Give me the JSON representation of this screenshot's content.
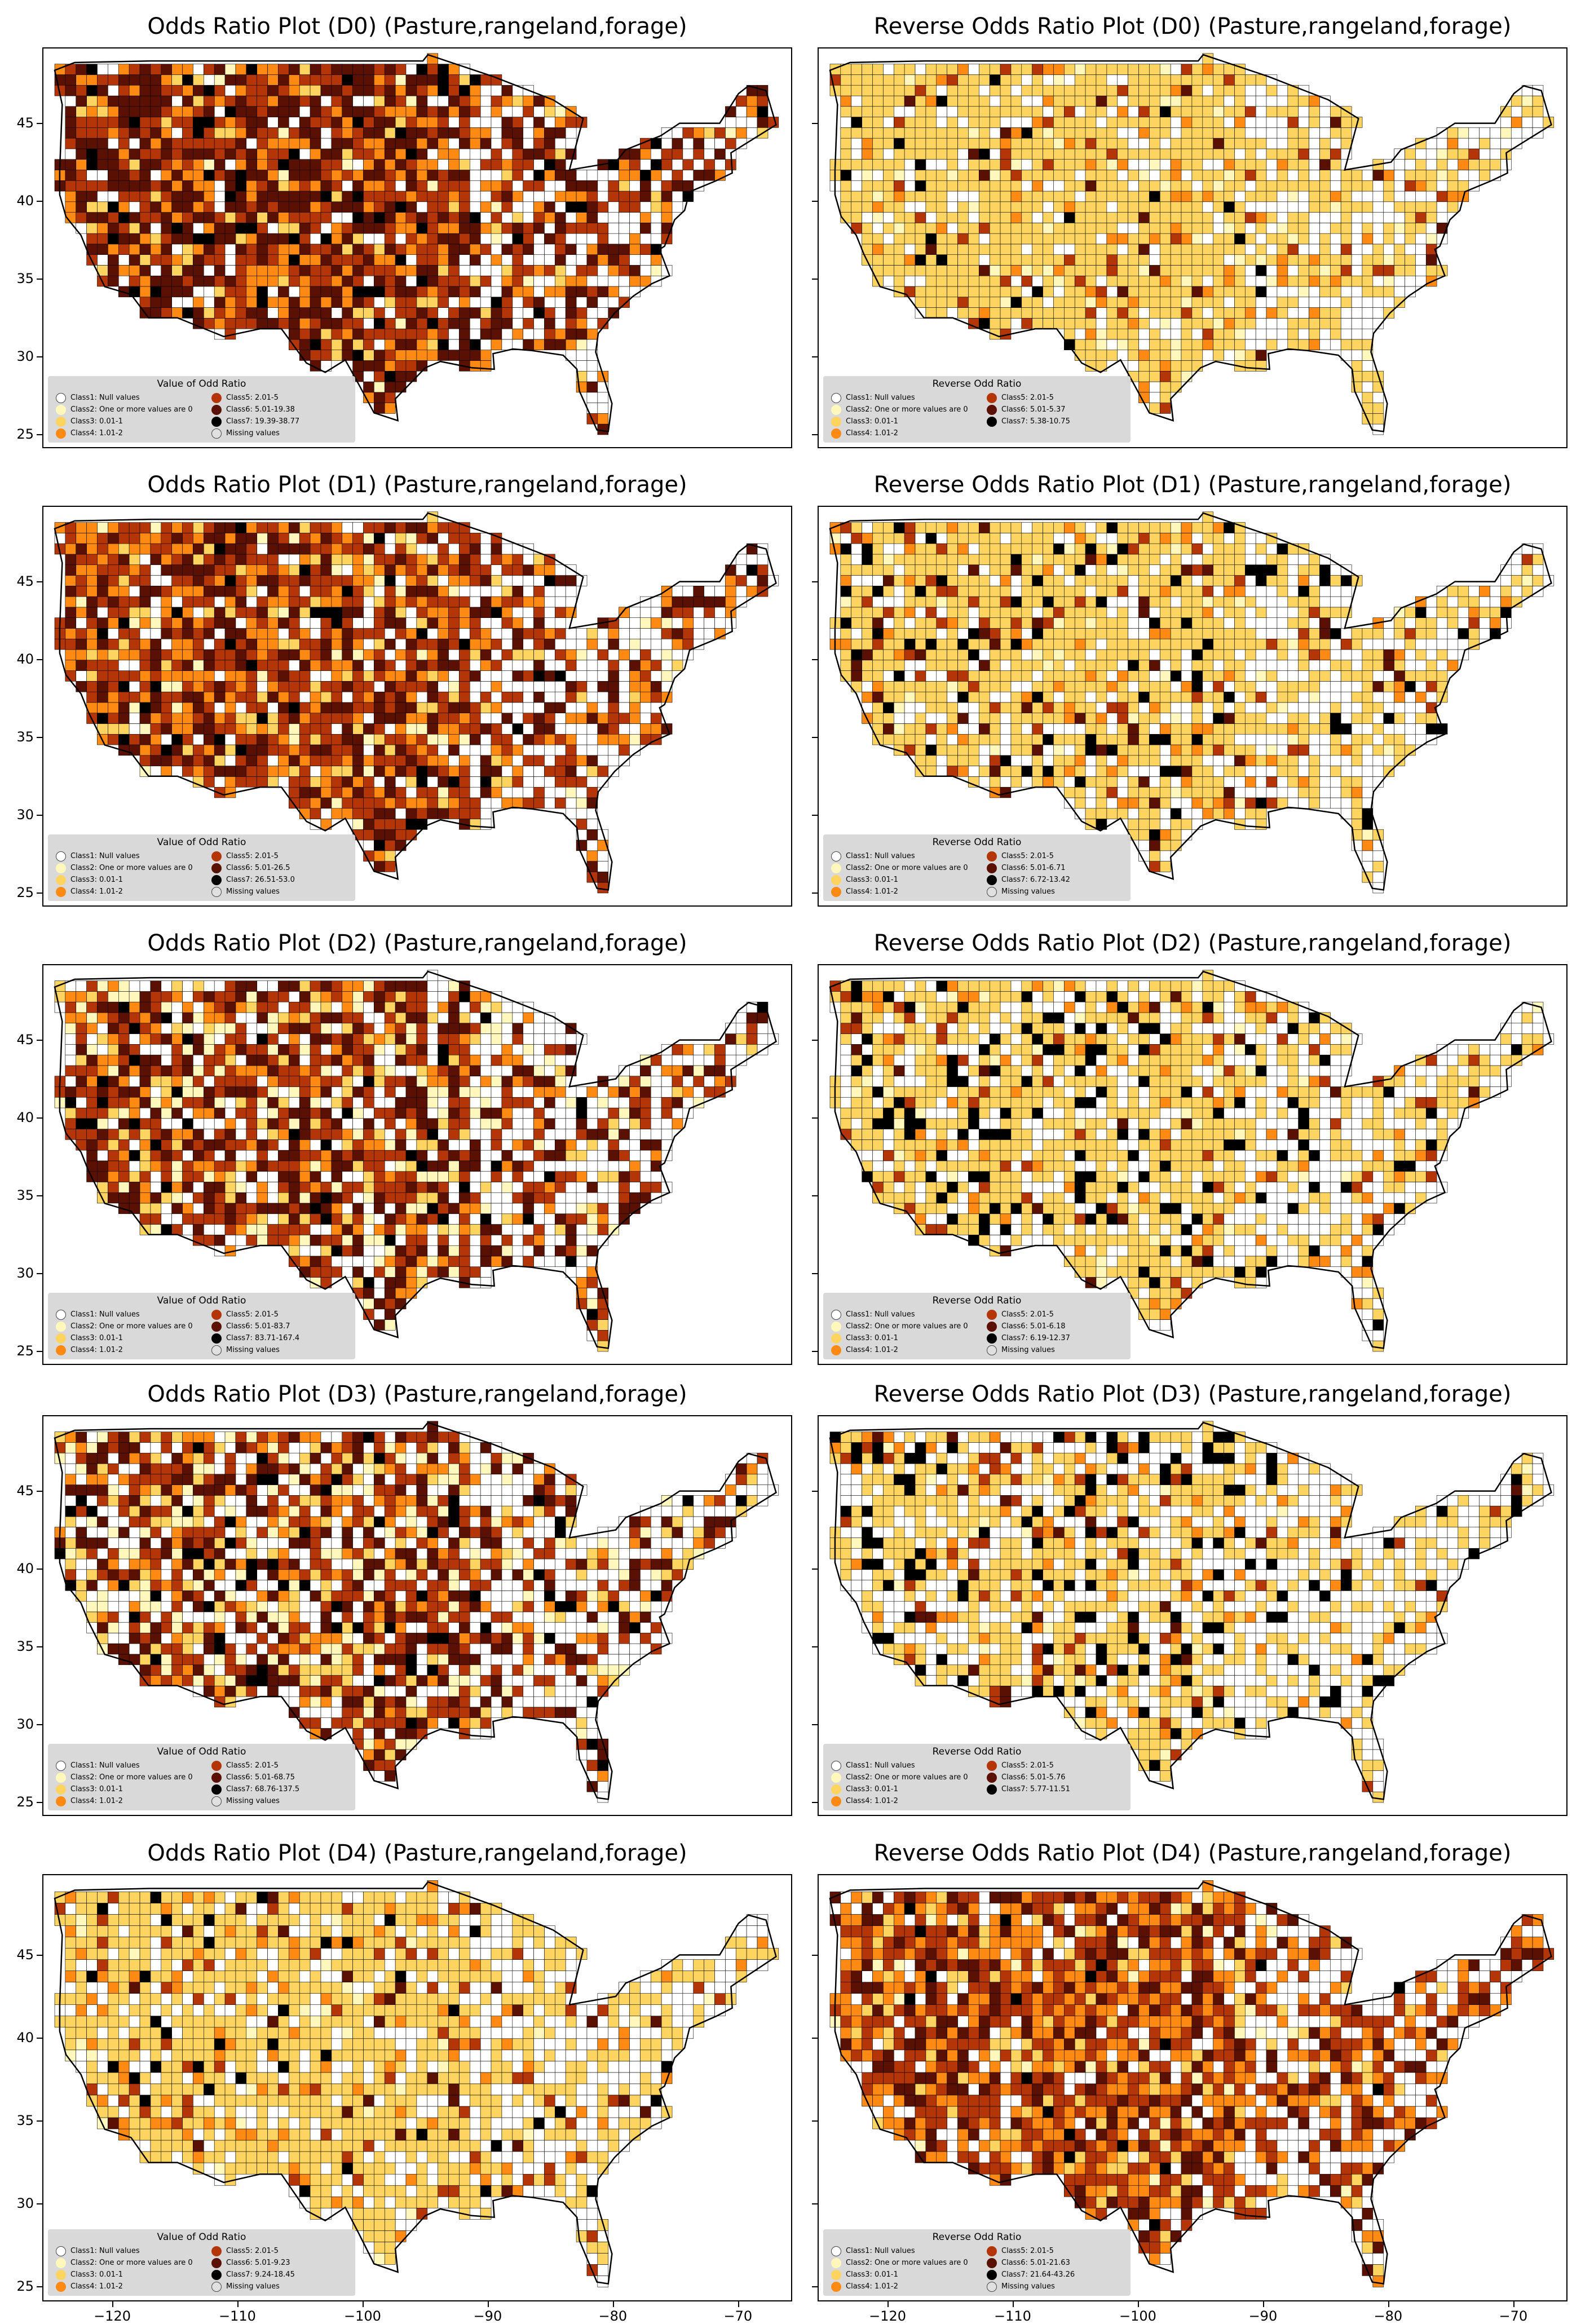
{
  "colors": {
    "class1": "#ffffff",
    "class2": "#fff7bc",
    "class3": "#fed460",
    "class4": "#fe8a14",
    "class5": "#b43507",
    "class6": "#5a1103",
    "class7": "#000000",
    "missing": "#e0e0e0"
  },
  "axes": {
    "yticks": [
      "45",
      "40",
      "35",
      "30",
      "25"
    ],
    "xticks": [
      "−120",
      "−110",
      "−100",
      "−90",
      "−80",
      "−70"
    ]
  },
  "panels": [
    {
      "title": "Odds Ratio Plot (D0) (Pasture,rangeland,forage)",
      "legend_title": "Value of Odd Ratio",
      "items": [
        "Class1: Null values",
        "Class2: One or more values are 0",
        "Class3: 0.01-1",
        "Class4: 1.01-2",
        "Class5: 2.01-5",
        "Class6: 5.01-19.38",
        "Class7: 19.39-38.77",
        "Missing values"
      ],
      "weights": [
        1.2,
        0.2,
        0.8,
        2.5,
        4,
        5,
        0.8
      ]
    },
    {
      "title": "Reverse Odds Ratio Plot (D0) (Pasture,rangeland,forage)",
      "legend_title": "Reverse Odd Ratio",
      "items": [
        "Class1: Null values",
        "Class2: One or more values are 0",
        "Class3: 0.01-1",
        "Class4: 1.01-2",
        "Class5: 2.01-5",
        "Class6: 5.01-5.37",
        "Class7: 5.38-10.75"
      ],
      "weights": [
        2,
        0.6,
        8,
        0.8,
        0.4,
        0.2,
        0.3
      ]
    },
    {
      "title": "Odds Ratio Plot (D1) (Pasture,rangeland,forage)",
      "legend_title": "Value of Odd Ratio",
      "items": [
        "Class1: Null values",
        "Class2: One or more values are 0",
        "Class3: 0.01-1",
        "Class4: 1.01-2",
        "Class5: 2.01-5",
        "Class6: 5.01-26.5",
        "Class7: 26.51-53.0",
        "Missing values"
      ],
      "weights": [
        1.5,
        0.6,
        1,
        3,
        4.5,
        3,
        0.4
      ]
    },
    {
      "title": "Reverse Odds Ratio Plot (D1) (Pasture,rangeland,forage)",
      "legend_title": "Reverse Odd Ratio",
      "items": [
        "Class1: Null values",
        "Class2: One or more values are 0",
        "Class3: 0.01-1",
        "Class4: 1.01-2",
        "Class5: 2.01-5",
        "Class6: 5.01-6.71",
        "Class7: 6.72-13.42",
        "Missing values"
      ],
      "weights": [
        2.5,
        0.4,
        7,
        0.8,
        0.6,
        0.3,
        0.8
      ]
    },
    {
      "title": "Odds Ratio Plot (D2) (Pasture,rangeland,forage)",
      "legend_title": "Value of Odd Ratio",
      "items": [
        "Class1: Null values",
        "Class2: One or more values are 0",
        "Class3: 0.01-1",
        "Class4: 1.01-2",
        "Class5: 2.01-5",
        "Class6: 5.01-83.7",
        "Class7: 83.71-167.4",
        "Missing values"
      ],
      "weights": [
        2.5,
        1.5,
        1,
        1.5,
        3.5,
        3,
        0.5
      ]
    },
    {
      "title": "Reverse Odds Ratio Plot (D2) (Pasture,rangeland,forage)",
      "legend_title": "Reverse Odd Ratio",
      "items": [
        "Class1: Null values",
        "Class2: One or more values are 0",
        "Class3: 0.01-1",
        "Class4: 1.01-2",
        "Class5: 2.01-5",
        "Class6: 5.01-6.18",
        "Class7: 6.19-12.37",
        "Missing values"
      ],
      "weights": [
        3,
        0.3,
        6,
        0.6,
        0.5,
        0.2,
        1.2
      ]
    },
    {
      "title": "Odds Ratio Plot (D3) (Pasture,rangeland,forage)",
      "legend_title": "Value of Odd Ratio",
      "items": [
        "Class1: Null values",
        "Class2: One or more values are 0",
        "Class3: 0.01-1",
        "Class4: 1.01-2",
        "Class5: 2.01-5",
        "Class6: 5.01-68.75",
        "Class7: 68.76-137.5",
        "Missing values"
      ],
      "weights": [
        3,
        1.5,
        1.2,
        1.2,
        3,
        2.5,
        0.6
      ]
    },
    {
      "title": "Reverse Odds Ratio Plot (D3) (Pasture,rangeland,forage)",
      "legend_title": "Reverse Odd Ratio",
      "items": [
        "Class1: Null values",
        "Class2: One or more values are 0",
        "Class3: 0.01-1",
        "Class4: 1.01-2",
        "Class5: 2.01-5",
        "Class6: 5.01-5.76",
        "Class7: 5.77-11.51"
      ],
      "weights": [
        4,
        0.3,
        5,
        0.6,
        0.6,
        0.2,
        1.5
      ]
    },
    {
      "title": "Odds Ratio Plot (D4) (Pasture,rangeland,forage)",
      "legend_title": "Value of Odd Ratio",
      "items": [
        "Class1: Null values",
        "Class2: One or more values are 0",
        "Class3: 0.01-1",
        "Class4: 1.01-2",
        "Class5: 2.01-5",
        "Class6: 5.01-9.23",
        "Class7: 9.24-18.45",
        "Missing values"
      ],
      "weights": [
        2.5,
        0.3,
        7,
        0.8,
        0.6,
        0.2,
        0.4
      ]
    },
    {
      "title": "Reverse Odds Ratio Plot (D4) (Pasture,rangeland,forage)",
      "legend_title": "Reverse Odd Ratio",
      "items": [
        "Class1: Null values",
        "Class2: One or more values are 0",
        "Class3: 0.01-1",
        "Class4: 1.01-2",
        "Class5: 2.01-5",
        "Class6: 5.01-21.63",
        "Class7: 21.64-43.26",
        "Missing values"
      ],
      "weights": [
        1.5,
        0.3,
        1.2,
        3.5,
        4,
        2,
        0.2
      ]
    }
  ]
}
